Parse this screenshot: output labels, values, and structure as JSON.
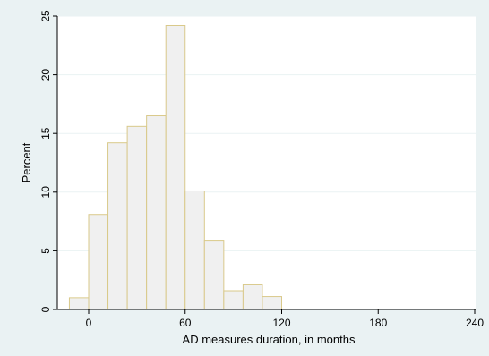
{
  "chart_data": {
    "type": "bar",
    "title": "",
    "xlabel": "AD measures duration, in months",
    "ylabel": "Percent",
    "xlim": [
      -10,
      240
    ],
    "ylim": [
      0,
      25
    ],
    "x_ticks": [
      0,
      60,
      120,
      180,
      240
    ],
    "y_ticks": [
      0,
      5,
      10,
      15,
      20,
      25
    ],
    "grid": true,
    "bin_width": 12,
    "bins": [
      {
        "start": -12,
        "end": 0,
        "value": 1.0
      },
      {
        "start": 0,
        "end": 12,
        "value": 8.1
      },
      {
        "start": 12,
        "end": 24,
        "value": 14.2
      },
      {
        "start": 24,
        "end": 36,
        "value": 15.6
      },
      {
        "start": 36,
        "end": 48,
        "value": 16.5
      },
      {
        "start": 48,
        "end": 60,
        "value": 24.2
      },
      {
        "start": 60,
        "end": 72,
        "value": 10.1
      },
      {
        "start": 72,
        "end": 84,
        "value": 5.9
      },
      {
        "start": 84,
        "end": 96,
        "value": 1.6
      },
      {
        "start": 96,
        "end": 108,
        "value": 2.1
      },
      {
        "start": 108,
        "end": 120,
        "value": 1.1
      }
    ],
    "colors": {
      "background": "#eaf2f3",
      "plot_area": "#ffffff",
      "bar_fill": "#f0f0f0",
      "bar_stroke": "#d9c98a",
      "grid": "#eaf2f3",
      "axis": "#000000"
    }
  }
}
